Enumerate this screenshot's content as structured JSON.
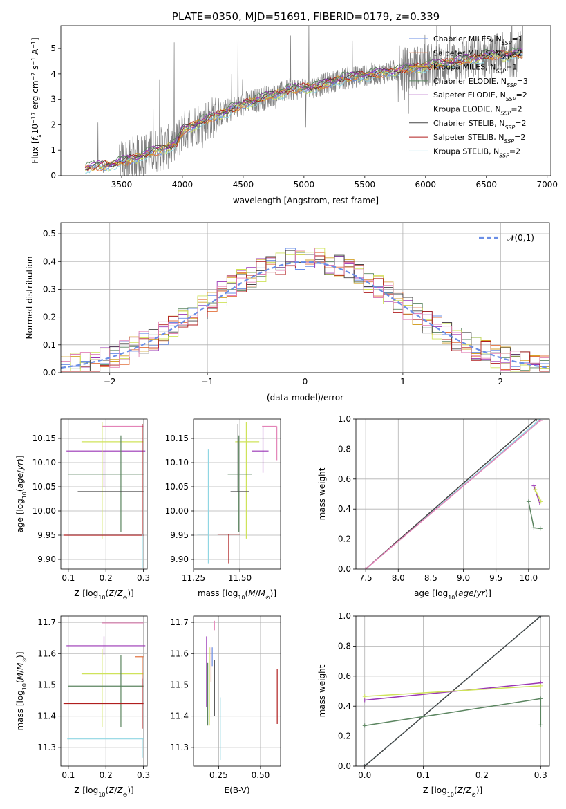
{
  "figure": {
    "title": "PLATE=0350, MJD=51691, FIBERID=0179, z=0.339"
  },
  "colors": {
    "chabrier_miles": "#6a8ee6",
    "salpeter_miles": "#e2703c",
    "kroupa_miles": "#d4a22a",
    "chabrier_elodie": "#5b8560",
    "salpeter_elodie": "#9a35b5",
    "kroupa_elodie": "#cfe35a",
    "chabrier_stelib": "#474747",
    "salpeter_stelib": "#b01e1e",
    "kroupa_stelib": "#8fd6e3",
    "pink": "#e383b7",
    "data_gray": "#808080",
    "normal_curve": "#6a8ee6"
  },
  "chart_data": [
    {
      "id": "spectrum",
      "type": "line",
      "title": "PLATE=0350, MJD=51691, FIBERID=0179, z=0.339",
      "xlabel": "wavelength [Angstrom, rest frame]",
      "ylabel_parts": [
        "Flux [",
        "f",
        "λ",
        "10",
        "−17",
        " erg cm",
        "−2",
        " s",
        "−1",
        " A",
        "−1",
        "]"
      ],
      "xlim": [
        3000,
        7030
      ],
      "ylim": [
        0,
        5.9
      ],
      "xticks": [
        3500,
        4000,
        4500,
        5000,
        5500,
        6000,
        6500,
        7000
      ],
      "yticks": [
        0,
        1,
        2,
        3,
        4,
        5
      ],
      "grid": false,
      "legend_position": "upper-right",
      "legend": [
        {
          "base": "Chabrier MILES, N",
          "sub": "SSP",
          "suffix": "=1",
          "color_key": "chabrier_miles"
        },
        {
          "base": "Salpeter MILES, N",
          "sub": "SSP",
          "suffix": "=2",
          "color_key": "salpeter_miles"
        },
        {
          "base": "Kroupa MILES, N",
          "sub": "SSP",
          "suffix": "=1",
          "color_key": "kroupa_miles"
        },
        {
          "base": "Chabrier ELODIE, N",
          "sub": "SSP",
          "suffix": "=3",
          "color_key": "chabrier_elodie"
        },
        {
          "base": "Salpeter ELODIE, N",
          "sub": "SSP",
          "suffix": "=2",
          "color_key": "salpeter_elodie"
        },
        {
          "base": "Kroupa ELODIE, N",
          "sub": "SSP",
          "suffix": "=2",
          "color_key": "kroupa_elodie"
        },
        {
          "base": "Chabrier STELIB, N",
          "sub": "SSP",
          "suffix": "=2",
          "color_key": "chabrier_stelib"
        },
        {
          "base": "Salpeter STELIB, N",
          "sub": "SSP",
          "suffix": "=2",
          "color_key": "salpeter_stelib"
        },
        {
          "base": "Kroupa STELIB, N",
          "sub": "SSP",
          "suffix": "=2",
          "color_key": "kroupa_stelib"
        }
      ],
      "continuum_points": [
        [
          3200,
          0.3
        ],
        [
          3400,
          0.42
        ],
        [
          3550,
          0.6
        ],
        [
          3700,
          0.85
        ],
        [
          3800,
          1.0
        ],
        [
          3950,
          1.25
        ],
        [
          4000,
          1.8
        ],
        [
          4100,
          2.0
        ],
        [
          4200,
          2.2
        ],
        [
          4300,
          2.4
        ],
        [
          4500,
          2.8
        ],
        [
          4700,
          3.1
        ],
        [
          4900,
          3.4
        ],
        [
          5100,
          3.5
        ],
        [
          5300,
          3.8
        ],
        [
          5500,
          3.95
        ],
        [
          5800,
          4.15
        ],
        [
          6000,
          4.3
        ],
        [
          6200,
          4.45
        ],
        [
          6500,
          4.7
        ],
        [
          6800,
          4.8
        ]
      ]
    },
    {
      "id": "residuals",
      "type": "histogram",
      "xlabel": "(data-model)/error",
      "ylabel": "Normed distribution",
      "xlim": [
        -2.5,
        2.5
      ],
      "ylim": [
        0,
        0.54
      ],
      "xticks": [
        -2,
        -1,
        0,
        1,
        2
      ],
      "xtick_labels": [
        "−2",
        "−1",
        "0",
        "1",
        "2"
      ],
      "yticks": [
        0.0,
        0.1,
        0.2,
        0.3,
        0.4,
        0.5
      ],
      "ytick_labels": [
        "0.0",
        "0.1",
        "0.2",
        "0.3",
        "0.4",
        "0.5"
      ],
      "grid": true,
      "bin_width": 0.1,
      "legend": "𝒩(0,1)",
      "legend_position": "upper-right"
    },
    {
      "id": "age_vs_Z",
      "type": "errorbar",
      "xlabel": "Z [log10(Z/Z⊙)]",
      "ylabel": "age  [log10(age/yr)]",
      "xlim": [
        0.08,
        0.31
      ],
      "ylim": [
        9.88,
        10.19
      ],
      "xticks": [
        0.1,
        0.2,
        0.3
      ],
      "yticks": [
        9.9,
        9.95,
        10.0,
        10.05,
        10.1,
        10.15
      ],
      "ytick_labels": [
        "9.90",
        "9.95",
        "10.00",
        "10.05",
        "10.10",
        "10.15"
      ],
      "grid": true,
      "points": [
        {
          "x": 0.19,
          "y": 10.175,
          "xerr": [
            0.0,
            0.11
          ],
          "yerr": [
            0.0,
            0.0
          ],
          "color_key": "pink"
        },
        {
          "x": 0.195,
          "y": 10.124,
          "xerr": [
            0.1,
            0.11
          ],
          "yerr": [
            0.075,
            0.0
          ],
          "color_key": "salpeter_elodie"
        },
        {
          "x": 0.19,
          "y": 10.143,
          "xerr": [
            0.055,
            0.11
          ],
          "yerr": [
            0.2,
            0.04
          ],
          "color_key": "kroupa_elodie"
        },
        {
          "x": 0.24,
          "y": 10.076,
          "xerr": [
            0.14,
            0.06
          ],
          "yerr": [
            0.12,
            0.08
          ],
          "color_key": "chabrier_elodie"
        },
        {
          "x": 0.245,
          "y": 10.04,
          "xerr": [
            0.12,
            0.055
          ],
          "yerr": [
            0.0,
            0.0
          ],
          "color_key": "chabrier_stelib"
        },
        {
          "x": 0.297,
          "y": 9.95,
          "xerr": [
            0.21,
            0.003
          ],
          "yerr": [
            0.0,
            0.23
          ],
          "color_key": "salpeter_stelib"
        },
        {
          "x": 0.297,
          "y": 9.952,
          "xerr": [
            0.2,
            0.003
          ],
          "yerr": [
            0.07,
            0.0
          ],
          "color_key": "kroupa_stelib"
        }
      ]
    },
    {
      "id": "age_vs_mass",
      "type": "errorbar",
      "xlabel": "mass [log10(M/M⊙)]",
      "ylabel": "",
      "xlim": [
        11.25,
        11.72
      ],
      "ylim": [
        9.88,
        10.19
      ],
      "xticks": [
        11.25,
        11.5
      ],
      "xtick_labels": [
        "11.25",
        "11.50"
      ],
      "yticks": [
        9.9,
        9.95,
        10.0,
        10.05,
        10.1,
        10.15
      ],
      "ytick_labels": [
        "9.90",
        "9.95",
        "10.00",
        "10.05",
        "10.10",
        "10.15"
      ],
      "grid": true,
      "points": [
        {
          "x": 11.7,
          "y": 10.175,
          "xerr": [
            0.08,
            0.0
          ],
          "yerr": [
            0.07,
            0.0
          ],
          "color_key": "pink"
        },
        {
          "x": 11.625,
          "y": 10.124,
          "xerr": [
            0.06,
            0.03
          ],
          "yerr": [
            0.045,
            0.05
          ],
          "color_key": "salpeter_elodie"
        },
        {
          "x": 11.535,
          "y": 10.143,
          "xerr": [
            0.06,
            0.07
          ],
          "yerr": [
            0.2,
            0.04
          ],
          "color_key": "kroupa_elodie"
        },
        {
          "x": 11.495,
          "y": 10.076,
          "xerr": [
            0.06,
            0.07
          ],
          "yerr": [
            0.12,
            0.08
          ],
          "color_key": "chabrier_elodie"
        },
        {
          "x": 11.49,
          "y": 10.04,
          "xerr": [
            0.04,
            0.06
          ],
          "yerr": [
            0.0,
            0.14
          ],
          "color_key": "chabrier_stelib"
        },
        {
          "x": 11.44,
          "y": 9.952,
          "xerr": [
            0.06,
            0.06
          ],
          "yerr": [
            0.06,
            0.0
          ],
          "color_key": "salpeter_stelib"
        },
        {
          "x": 11.33,
          "y": 9.952,
          "xerr": [
            0.06,
            0.0
          ],
          "yerr": [
            0.06,
            0.175
          ],
          "color_key": "kroupa_stelib"
        }
      ]
    },
    {
      "id": "massweight_vs_age",
      "type": "line",
      "xlabel": "age  [log10(age/yr)]",
      "ylabel": "mass weight",
      "xlim": [
        7.35,
        10.32
      ],
      "ylim": [
        0.0,
        1.0
      ],
      "xticks": [
        7.5,
        8.0,
        8.5,
        9.0,
        9.5,
        10.0
      ],
      "xtick_labels": [
        "7.5",
        "8.0",
        "8.5",
        "9.0",
        "9.5",
        "10.0"
      ],
      "yticks": [
        0.0,
        0.2,
        0.4,
        0.6,
        0.8,
        1.0
      ],
      "ytick_labels": [
        "0.0",
        "0.2",
        "0.4",
        "0.6",
        "0.8",
        "1.0"
      ],
      "grid": true,
      "series": [
        {
          "color_key": "kroupa_stelib",
          "x": [
            7.5,
            10.18
          ],
          "y": [
            0.0,
            1.0
          ]
        },
        {
          "color_key": "chabrier_stelib",
          "x": [
            7.5,
            10.12
          ],
          "y": [
            0.0,
            1.0
          ]
        },
        {
          "color_key": "pink",
          "x": [
            7.5,
            10.18
          ],
          "y": [
            0.0,
            0.99
          ]
        },
        {
          "color_key": "salpeter_elodie",
          "x": [
            10.08,
            10.17
          ],
          "y": [
            0.555,
            0.44
          ]
        },
        {
          "color_key": "kroupa_elodie",
          "x": [
            10.1,
            10.19
          ],
          "y": [
            0.53,
            0.45
          ]
        },
        {
          "color_key": "chabrier_elodie",
          "x": [
            10.0,
            10.08,
            10.18
          ],
          "y": [
            0.45,
            0.275,
            0.27
          ]
        }
      ]
    },
    {
      "id": "mass_vs_Z",
      "type": "errorbar",
      "xlabel": "Z [log10(Z/Z⊙)]",
      "ylabel": "mass [log10(M/M⊙)]",
      "xlim": [
        0.08,
        0.31
      ],
      "ylim": [
        11.24,
        11.72
      ],
      "xticks": [
        0.1,
        0.2,
        0.3
      ],
      "yticks": [
        11.3,
        11.4,
        11.5,
        11.6,
        11.7
      ],
      "grid": true,
      "points": [
        {
          "x": 0.19,
          "y": 11.698,
          "xerr": [
            0.0,
            0.11
          ],
          "yerr": [
            0.0,
            0.0
          ],
          "color_key": "pink"
        },
        {
          "x": 0.195,
          "y": 11.625,
          "xerr": [
            0.1,
            0.11
          ],
          "yerr": [
            0.03,
            0.03
          ],
          "color_key": "salpeter_elodie"
        },
        {
          "x": 0.19,
          "y": 11.535,
          "xerr": [
            0.055,
            0.11
          ],
          "yerr": [
            0.17,
            0.08
          ],
          "color_key": "kroupa_elodie"
        },
        {
          "x": 0.24,
          "y": 11.496,
          "xerr": [
            0.14,
            0.06
          ],
          "yerr": [
            0.13,
            0.1
          ],
          "color_key": "chabrier_elodie"
        },
        {
          "x": 0.297,
          "y": 11.59,
          "xerr": [
            0.02,
            0.003
          ],
          "yerr": [
            0.07,
            0.0
          ],
          "color_key": "salpeter_miles"
        },
        {
          "x": 0.297,
          "y": 11.44,
          "xerr": [
            0.21,
            0.003
          ],
          "yerr": [
            0.08,
            0.08
          ],
          "color_key": "salpeter_stelib"
        },
        {
          "x": 0.297,
          "y": 11.327,
          "xerr": [
            0.2,
            0.003
          ],
          "yerr": [
            0.06,
            0.0
          ],
          "color_key": "kroupa_stelib"
        }
      ]
    },
    {
      "id": "mass_vs_ebv",
      "type": "errorbar",
      "xlabel": "E(B-V)",
      "ylabel": "",
      "xlim": [
        0.1,
        0.62
      ],
      "ylim": [
        11.24,
        11.72
      ],
      "xticks": [
        0.25,
        0.5
      ],
      "xtick_labels": [
        "0.25",
        "0.50"
      ],
      "yticks": [
        11.3,
        11.4,
        11.5,
        11.6,
        11.7
      ],
      "grid": true,
      "points": [
        {
          "x": 0.225,
          "y": 11.675,
          "xerr": [
            0.0,
            0.0
          ],
          "yerr": [
            0.0,
            0.03
          ],
          "color_key": "pink"
        },
        {
          "x": 0.178,
          "y": 11.6,
          "xerr": [
            0.0,
            0.0
          ],
          "yerr": [
            0.17,
            0.055
          ],
          "color_key": "salpeter_elodie"
        },
        {
          "x": 0.195,
          "y": 11.54,
          "xerr": [
            0.0,
            0.0
          ],
          "yerr": [
            0.17,
            0.08
          ],
          "color_key": "kroupa_elodie"
        },
        {
          "x": 0.185,
          "y": 11.5,
          "xerr": [
            0.0,
            0.0
          ],
          "yerr": [
            0.13,
            0.07
          ],
          "color_key": "chabrier_elodie"
        },
        {
          "x": 0.205,
          "y": 11.58,
          "xerr": [
            0.0,
            0.0
          ],
          "yerr": [
            0.07,
            0.04
          ],
          "color_key": "salpeter_miles"
        },
        {
          "x": 0.212,
          "y": 11.6,
          "xerr": [
            0.0,
            0.0
          ],
          "yerr": [
            0.04,
            0.02
          ],
          "color_key": "chabrier_miles"
        },
        {
          "x": 0.225,
          "y": 11.52,
          "xerr": [
            0.0,
            0.0
          ],
          "yerr": [
            0.12,
            0.06
          ],
          "color_key": "chabrier_stelib"
        },
        {
          "x": 0.26,
          "y": 11.36,
          "xerr": [
            0.0,
            0.0
          ],
          "yerr": [
            0.1,
            0.1
          ],
          "color_key": "kroupa_stelib"
        },
        {
          "x": 0.6,
          "y": 11.46,
          "xerr": [
            0.0,
            0.0
          ],
          "yerr": [
            0.085,
            0.09
          ],
          "color_key": "salpeter_stelib"
        }
      ]
    },
    {
      "id": "massweight_vs_Z",
      "type": "line",
      "xlabel": "Z [log10(Z/Z⊙)]",
      "ylabel": "mass weight",
      "xlim": [
        -0.015,
        0.315
      ],
      "ylim": [
        0.0,
        1.0
      ],
      "xticks": [
        0.0,
        0.1,
        0.2,
        0.3
      ],
      "xtick_labels": [
        "0.0",
        "0.1",
        "0.2",
        "0.3"
      ],
      "yticks": [
        0.0,
        0.2,
        0.4,
        0.6,
        0.8,
        1.0
      ],
      "ytick_labels": [
        "0.0",
        "0.2",
        "0.4",
        "0.6",
        "0.8",
        "1.0"
      ],
      "grid": true,
      "series": [
        {
          "color_key": "kroupa_stelib",
          "x": [
            0.0,
            0.3
          ],
          "y": [
            0.0,
            1.0
          ]
        },
        {
          "color_key": "chabrier_stelib",
          "x": [
            0.0,
            0.3
          ],
          "y": [
            0.0,
            1.0
          ]
        },
        {
          "color_key": "salpeter_elodie",
          "x": [
            0.0,
            0.3
          ],
          "y": [
            0.44,
            0.555
          ]
        },
        {
          "color_key": "kroupa_elodie",
          "x": [
            0.0,
            0.3
          ],
          "y": [
            0.465,
            0.535
          ]
        },
        {
          "color_key": "chabrier_elodie",
          "x": [
            0.0,
            0.3,
            0.3
          ],
          "y": [
            0.27,
            0.45,
            0.275
          ]
        }
      ]
    }
  ]
}
